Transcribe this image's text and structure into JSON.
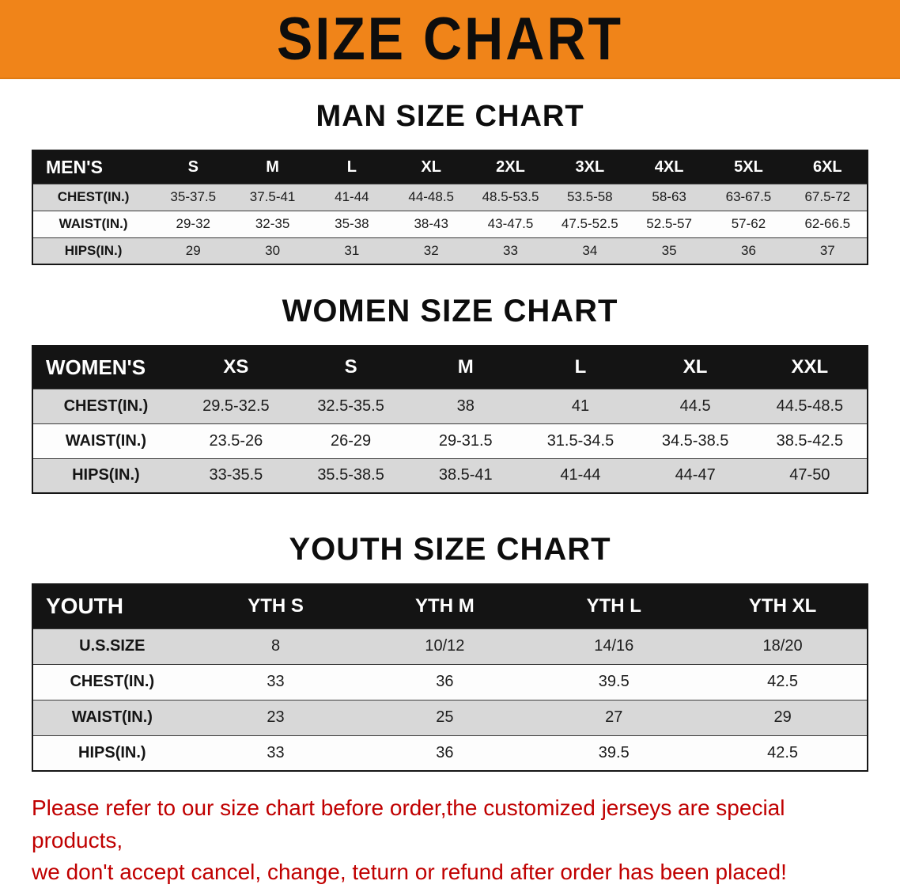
{
  "banner": {
    "title": "SIZE CHART"
  },
  "sections": [
    {
      "id": "men",
      "heading": "MAN SIZE CHART",
      "corner": "MEN'S",
      "columns": [
        "S",
        "M",
        "L",
        "XL",
        "2XL",
        "3XL",
        "4XL",
        "5XL",
        "6XL"
      ],
      "rows": [
        {
          "label": "CHEST(IN.)",
          "values": [
            "35-37.5",
            "37.5-41",
            "41-44",
            "44-48.5",
            "48.5-53.5",
            "53.5-58",
            "58-63",
            "63-67.5",
            "67.5-72"
          ]
        },
        {
          "label": "WAIST(IN.)",
          "values": [
            "29-32",
            "32-35",
            "35-38",
            "38-43",
            "43-47.5",
            "47.5-52.5",
            "52.5-57",
            "57-62",
            "62-66.5"
          ]
        },
        {
          "label": "HIPS(IN.)",
          "values": [
            "29",
            "30",
            "31",
            "32",
            "33",
            "34",
            "35",
            "36",
            "37"
          ]
        }
      ]
    },
    {
      "id": "women",
      "heading": "WOMEN SIZE CHART",
      "corner": "WOMEN'S",
      "columns": [
        "XS",
        "S",
        "M",
        "L",
        "XL",
        "XXL"
      ],
      "rows": [
        {
          "label": "CHEST(IN.)",
          "values": [
            "29.5-32.5",
            "32.5-35.5",
            "38",
            "41",
            "44.5",
            "44.5-48.5"
          ]
        },
        {
          "label": "WAIST(IN.)",
          "values": [
            "23.5-26",
            "26-29",
            "29-31.5",
            "31.5-34.5",
            "34.5-38.5",
            "38.5-42.5"
          ]
        },
        {
          "label": "HIPS(IN.)",
          "values": [
            "33-35.5",
            "35.5-38.5",
            "38.5-41",
            "41-44",
            "44-47",
            "47-50"
          ]
        }
      ]
    },
    {
      "id": "youth",
      "heading": "YOUTH SIZE CHART",
      "corner": "YOUTH",
      "columns": [
        "YTH S",
        "YTH M",
        "YTH L",
        "YTH XL"
      ],
      "rows": [
        {
          "label": "U.S.SIZE",
          "values": [
            "8",
            "10/12",
            "14/16",
            "18/20"
          ]
        },
        {
          "label": "CHEST(IN.)",
          "values": [
            "33",
            "36",
            "39.5",
            "42.5"
          ]
        },
        {
          "label": "WAIST(IN.)",
          "values": [
            "23",
            "25",
            "27",
            "29"
          ]
        },
        {
          "label": "HIPS(IN.)",
          "values": [
            "33",
            "36",
            "39.5",
            "42.5"
          ]
        }
      ]
    }
  ],
  "disclaimer": {
    "line1": "Please refer to our size chart before order,the customized jerseys are special products,",
    "line2": "we don't accept cancel, change, teturn or refund after order has been placed!"
  },
  "colors": {
    "banner_bg": "#f08419",
    "header_bg": "#141414",
    "row_alt_bg": "#d8d8d8",
    "disclaimer_color": "#c00000"
  }
}
